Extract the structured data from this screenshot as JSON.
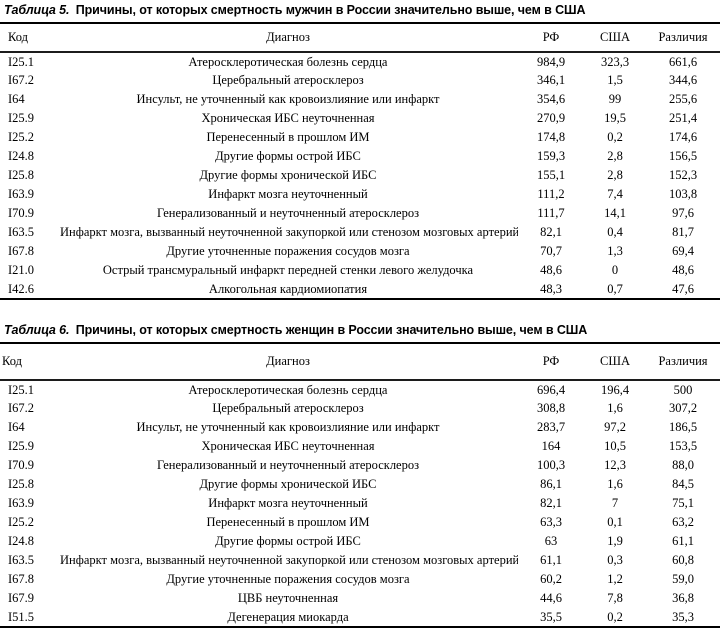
{
  "page": {
    "background_color": "#ffffff",
    "text_color": "#000000",
    "rule_color": "#000000"
  },
  "tables": [
    {
      "label": "Таблица 5.",
      "title": "Причины, от которых смертность мужчин в России значительно выше, чем в США",
      "columns": [
        "Код",
        "Диагноз",
        "РФ",
        "США",
        "Различия"
      ],
      "rows": [
        [
          "I25.1",
          "Атеросклеротическая болезнь сердца",
          "984,9",
          "323,3",
          "661,6"
        ],
        [
          "I67.2",
          "Церебральный атеросклероз",
          "346,1",
          "1,5",
          "344,6"
        ],
        [
          "I64",
          "Инсульт, не уточненный как кровоизлияние или инфаркт",
          "354,6",
          "99",
          "255,6"
        ],
        [
          "I25.9",
          "Хроническая ИБС неуточненная",
          "270,9",
          "19,5",
          "251,4"
        ],
        [
          "I25.2",
          "Перенесенный в прошлом ИМ",
          "174,8",
          "0,2",
          "174,6"
        ],
        [
          "I24.8",
          "Другие формы острой ИБС",
          "159,3",
          "2,8",
          "156,5"
        ],
        [
          "I25.8",
          "Другие формы хронической ИБС",
          "155,1",
          "2,8",
          "152,3"
        ],
        [
          "I63.9",
          "Инфаркт мозга неуточненный",
          "111,2",
          "7,4",
          "103,8"
        ],
        [
          "I70.9",
          "Генерализованный и неуточненный атеросклероз",
          "111,7",
          "14,1",
          "97,6"
        ],
        [
          "I63.5",
          "Инфаркт мозга, вызванный неуточненной закупоркой или стенозом мозговых артерий",
          "82,1",
          "0,4",
          "81,7"
        ],
        [
          "I67.8",
          "Другие уточненные поражения сосудов мозга",
          "70,7",
          "1,3",
          "69,4"
        ],
        [
          "I21.0",
          "Острый трансмуральный инфаркт передней стенки левого желудочка",
          "48,6",
          "0",
          "48,6"
        ],
        [
          "I42.6",
          "Алкогольная кардиомиопатия",
          "48,3",
          "0,7",
          "47,6"
        ]
      ]
    },
    {
      "label": "Таблица 6.",
      "title": "Причины, от которых смертность женщин в России значительно выше, чем в США",
      "columns": [
        "Код",
        "Диагноз",
        "РФ",
        "США",
        "Различия"
      ],
      "rows": [
        [
          "I25.1",
          "Атеросклеротическая болезнь сердца",
          "696,4",
          "196,4",
          "500"
        ],
        [
          "I67.2",
          "Церебральный атеросклероз",
          "308,8",
          "1,6",
          "307,2"
        ],
        [
          "I64",
          "Инсульт, не уточненный как кровоизлияние или инфаркт",
          "283,7",
          "97,2",
          "186,5"
        ],
        [
          "I25.9",
          "Хроническая ИБС неуточненная",
          "164",
          "10,5",
          "153,5"
        ],
        [
          "I70.9",
          "Генерализованный и неуточненный атеросклероз",
          "100,3",
          "12,3",
          "88,0"
        ],
        [
          "I25.8",
          "Другие формы хронической ИБС",
          "86,1",
          "1,6",
          "84,5"
        ],
        [
          "I63.9",
          "Инфаркт мозга неуточненный",
          "82,1",
          "7",
          "75,1"
        ],
        [
          "I25.2",
          "Перенесенный в прошлом ИМ",
          "63,3",
          "0,1",
          "63,2"
        ],
        [
          "I24.8",
          "Другие формы острой ИБС",
          "63",
          "1,9",
          "61,1"
        ],
        [
          "I63.5",
          "Инфаркт мозга, вызванный неуточненной закупоркой или стенозом мозговых артерий",
          "61,1",
          "0,3",
          "60,8"
        ],
        [
          "I67.8",
          "Другие уточненные поражения сосудов мозга",
          "60,2",
          "1,2",
          "59,0"
        ],
        [
          "I67.9",
          "ЦВБ неуточненная",
          "44,6",
          "7,8",
          "36,8"
        ],
        [
          "I51.5",
          "Дегенерация миокарда",
          "35,5",
          "0,2",
          "35,3"
        ]
      ]
    }
  ]
}
